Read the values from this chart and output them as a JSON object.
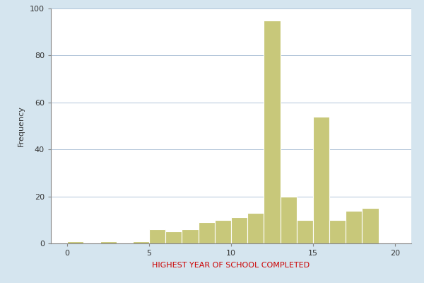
{
  "title": "",
  "xlabel": "HIGHEST YEAR OF SCHOOL COMPLETED",
  "ylabel": "Frequency",
  "xlabel_color": "#cc0000",
  "bar_color": "#c8c87a",
  "bar_edgecolor": "#ffffff",
  "background_color": "#d5e5ef",
  "plot_background_color": "#ffffff",
  "xlim": [
    -1,
    21
  ],
  "ylim": [
    0,
    100
  ],
  "xticks": [
    0,
    5,
    10,
    15,
    20
  ],
  "yticks": [
    0,
    20,
    40,
    60,
    80,
    100
  ],
  "bin_edges": [
    0,
    1,
    2,
    3,
    4,
    5,
    6,
    7,
    8,
    9,
    10,
    11,
    12,
    13,
    14,
    15,
    16,
    17,
    18,
    19,
    20
  ],
  "frequencies": [
    1,
    0,
    1,
    0,
    1,
    6,
    5,
    6,
    9,
    10,
    11,
    13,
    95,
    20,
    10,
    54,
    10,
    14,
    15,
    0
  ]
}
